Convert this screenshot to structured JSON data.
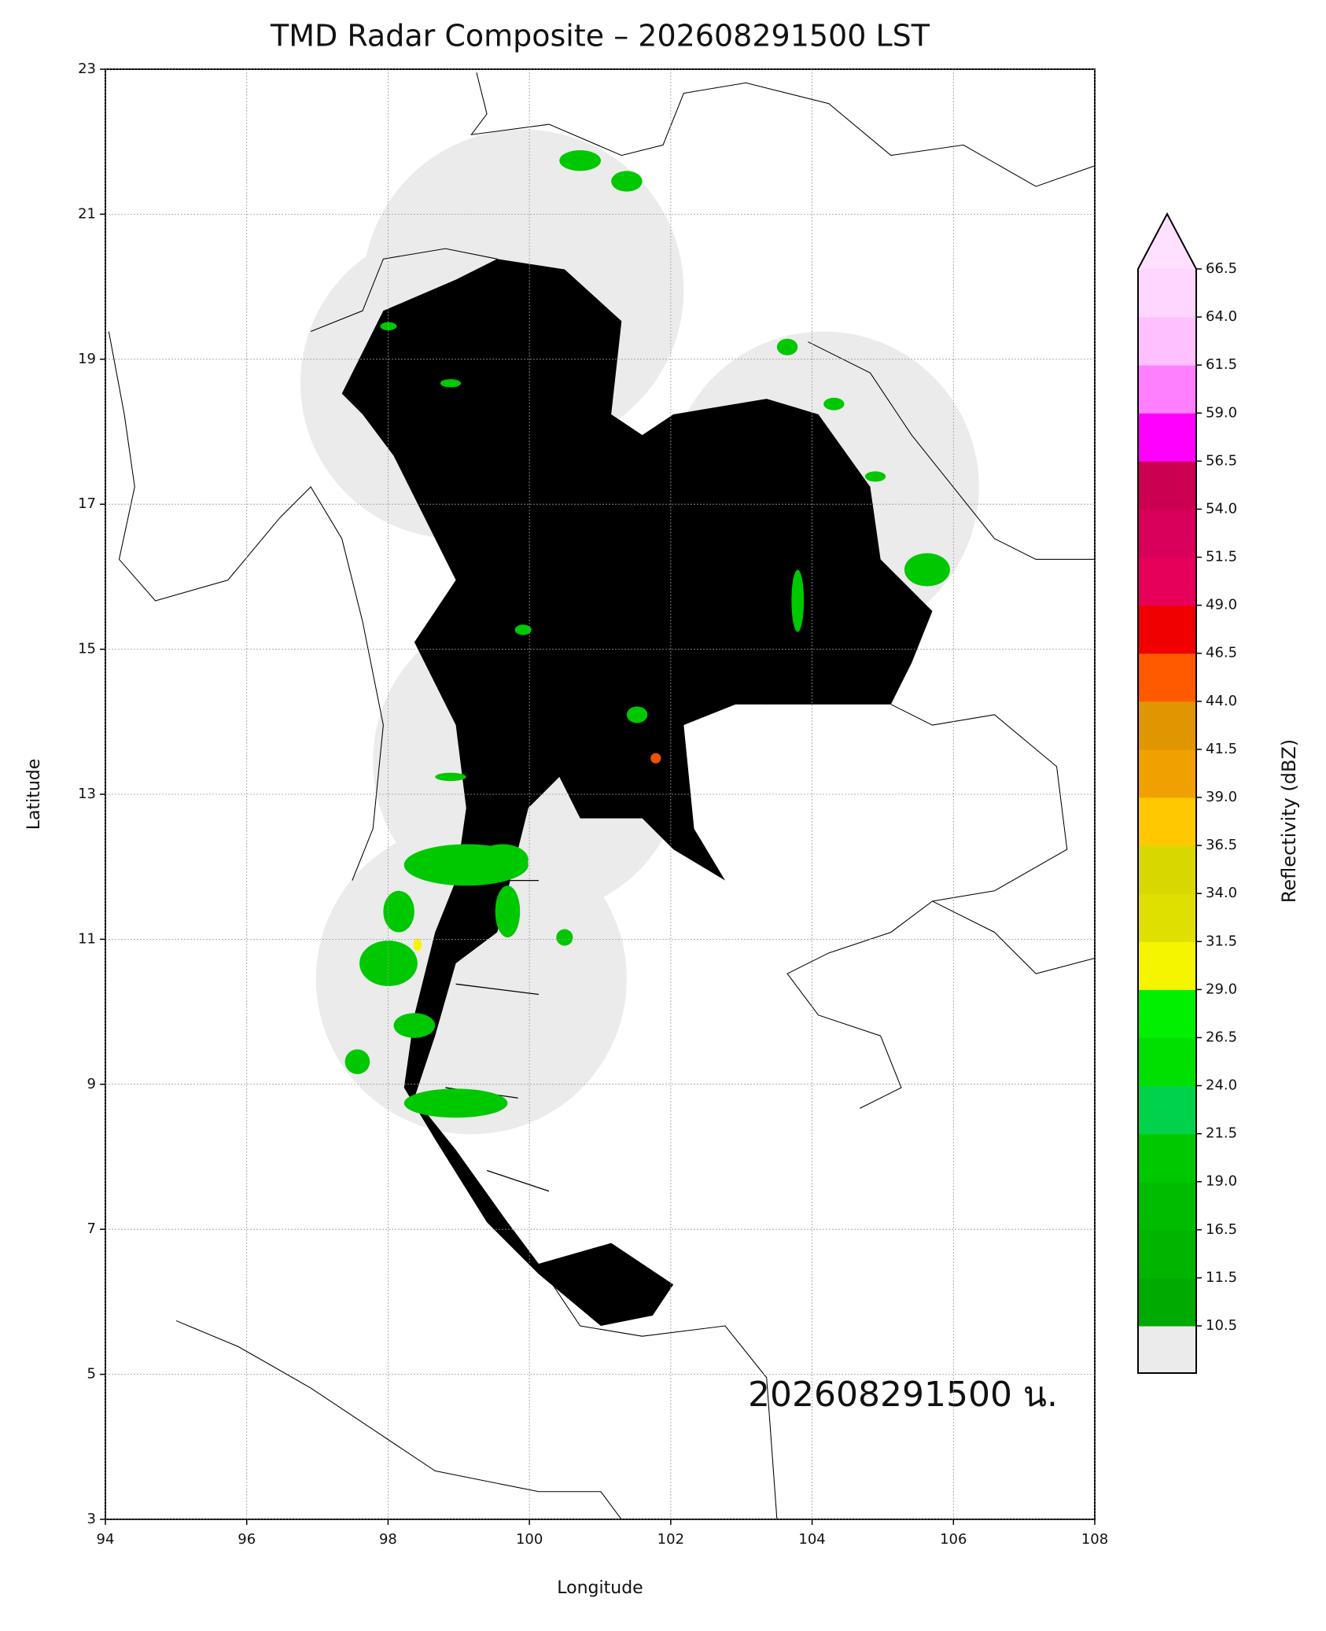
{
  "map": {
    "title": "TMD Radar Composite – 202608291500 LST",
    "xlabel": "Longitude",
    "ylabel": "Latitude",
    "annotation": "202608291500 น.",
    "xlim": [
      94,
      108
    ],
    "xticks": [
      94,
      96,
      98,
      100,
      102,
      104,
      106,
      108
    ],
    "ylim": [
      3,
      23
    ],
    "yticks": [
      3,
      5,
      7,
      9,
      11,
      13,
      15,
      17,
      19,
      21,
      23
    ],
    "grid": true,
    "colorbar": {
      "label": "Reflectivity (dBZ)",
      "ticks": [
        10.5,
        11.5,
        16.5,
        {
          "value": 19,
          "label": "19.0"
        },
        21.5,
        {
          "value": 24,
          "label": "24.0"
        },
        26.5,
        {
          "value": 29,
          "label": "29.0"
        },
        31.5,
        {
          "value": 34,
          "label": "34.0"
        },
        36.5,
        {
          "value": 39,
          "label": "39.0"
        },
        41.5,
        {
          "value": 44,
          "label": "44.0"
        },
        46.5,
        {
          "value": 49,
          "label": "49.0"
        },
        51.5,
        {
          "value": 54,
          "label": "54.0"
        },
        56.5,
        {
          "value": 59,
          "label": "59.0"
        },
        61.5,
        {
          "value": 64,
          "label": "64.0"
        },
        66.5
      ],
      "colors": [
        "#00aa00",
        "#00b400",
        "#00bc00",
        "#00c800",
        "#00d24b",
        "#00e000",
        "#00f000",
        "#f5f500",
        "#e0e000",
        "#d8d800",
        "#ffc800",
        "#f0a000",
        "#e09600",
        "#ff5a00",
        "#f00000",
        "#e6005a",
        "#d8005a",
        "#cc0050",
        "#ff00ff",
        "#ff80ff",
        "#ffc0ff",
        "#ffd6ff"
      ],
      "over_color": "#ffe0ff",
      "under_color": "#ebebeb"
    }
  }
}
